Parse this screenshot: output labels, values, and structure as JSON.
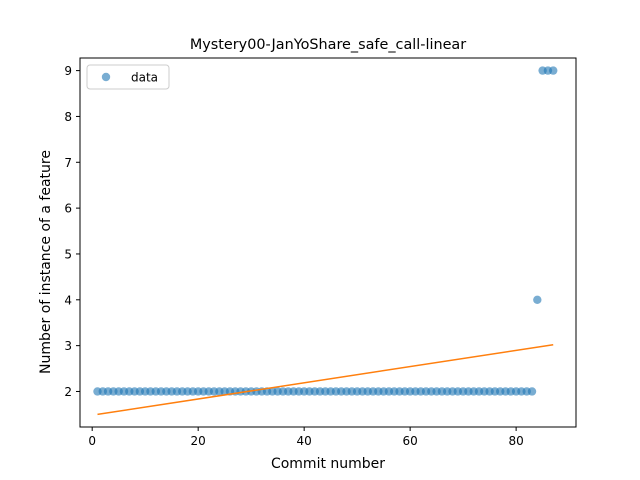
{
  "chart_data": {
    "type": "scatter",
    "title": "Mystery00-JanYoShare_safe_call-linear",
    "xlabel": "Commit number",
    "ylabel": "Number of instance of a feature",
    "xlim": [
      -2.3,
      91.3
    ],
    "ylim": [
      1.225,
      9.275
    ],
    "xticks": [
      0,
      20,
      40,
      60,
      80
    ],
    "yticks": [
      2,
      3,
      4,
      5,
      6,
      7,
      8,
      9
    ],
    "grid": false,
    "legend": {
      "location": "upper left",
      "entries": [
        "data"
      ]
    },
    "series": [
      {
        "name": "data",
        "kind": "scatter",
        "color": "#1f77b4",
        "x": [
          1,
          2,
          3,
          4,
          5,
          6,
          7,
          8,
          9,
          10,
          11,
          12,
          13,
          14,
          15,
          16,
          17,
          18,
          19,
          20,
          21,
          22,
          23,
          24,
          25,
          26,
          27,
          28,
          29,
          30,
          31,
          32,
          33,
          34,
          35,
          36,
          37,
          38,
          39,
          40,
          41,
          42,
          43,
          44,
          45,
          46,
          47,
          48,
          49,
          50,
          51,
          52,
          53,
          54,
          55,
          56,
          57,
          58,
          59,
          60,
          61,
          62,
          63,
          64,
          65,
          66,
          67,
          68,
          69,
          70,
          71,
          72,
          73,
          74,
          75,
          76,
          77,
          78,
          79,
          80,
          81,
          82,
          83,
          84,
          85,
          86,
          87
        ],
        "y": [
          2,
          2,
          2,
          2,
          2,
          2,
          2,
          2,
          2,
          2,
          2,
          2,
          2,
          2,
          2,
          2,
          2,
          2,
          2,
          2,
          2,
          2,
          2,
          2,
          2,
          2,
          2,
          2,
          2,
          2,
          2,
          2,
          2,
          2,
          2,
          2,
          2,
          2,
          2,
          2,
          2,
          2,
          2,
          2,
          2,
          2,
          2,
          2,
          2,
          2,
          2,
          2,
          2,
          2,
          2,
          2,
          2,
          2,
          2,
          2,
          2,
          2,
          2,
          2,
          2,
          2,
          2,
          2,
          2,
          2,
          2,
          2,
          2,
          2,
          2,
          2,
          2,
          2,
          2,
          2,
          2,
          2,
          2,
          4,
          9,
          9,
          9
        ]
      },
      {
        "kind": "line",
        "color": "#ff7f0e",
        "x": [
          1,
          87
        ],
        "y": [
          1.5,
          3.02
        ]
      }
    ]
  }
}
